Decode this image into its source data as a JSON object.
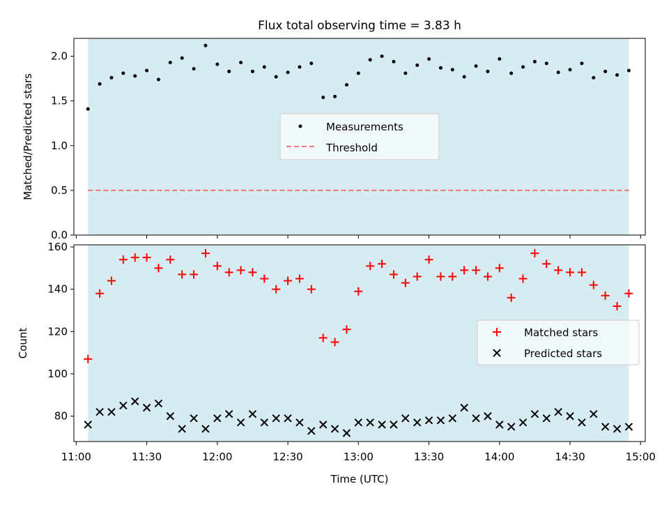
{
  "figure": {
    "title": "Flux total observing time = 3.83 h",
    "xlabel": "Time (UTC)",
    "x_ticks": [
      "11:00",
      "11:30",
      "12:00",
      "12:30",
      "13:00",
      "13:30",
      "14:00",
      "14:30",
      "15:00"
    ],
    "span_color": "#add8e6",
    "span_start": "11:05",
    "span_end": "14:55"
  },
  "chart_data": [
    {
      "type": "scatter",
      "ylabel": "Matched/Predicted stars",
      "ylim": [
        0,
        2.2
      ],
      "y_ticks": [
        "0.0",
        "0.5",
        "1.0",
        "1.5",
        "2.0"
      ],
      "xlim": [
        "10:59",
        "15:02"
      ],
      "threshold": 0.5,
      "legend_position": "center",
      "legend": [
        {
          "label": "Measurements",
          "marker": "dot",
          "color": "#000000"
        },
        {
          "label": "Threshold",
          "marker": "dashed-line",
          "color": "#ff0000"
        }
      ],
      "x": [
        "11:05",
        "11:10",
        "11:15",
        "11:20",
        "11:25",
        "11:30",
        "11:35",
        "11:40",
        "11:45",
        "11:50",
        "11:55",
        "12:00",
        "12:05",
        "12:10",
        "12:15",
        "12:20",
        "12:25",
        "12:30",
        "12:35",
        "12:40",
        "12:45",
        "12:50",
        "12:55",
        "13:00",
        "13:05",
        "13:10",
        "13:15",
        "13:20",
        "13:25",
        "13:30",
        "13:35",
        "13:40",
        "13:45",
        "13:50",
        "13:55",
        "14:00",
        "14:05",
        "14:10",
        "14:15",
        "14:20",
        "14:25",
        "14:30",
        "14:35",
        "14:40",
        "14:45",
        "14:50",
        "14:55"
      ],
      "series": [
        {
          "name": "Measurements",
          "color": "#000000",
          "values": [
            1.41,
            1.69,
            1.76,
            1.81,
            1.78,
            1.84,
            1.74,
            1.93,
            1.98,
            1.86,
            2.12,
            1.91,
            1.83,
            1.93,
            1.83,
            1.88,
            1.77,
            1.82,
            1.88,
            1.92,
            1.54,
            1.55,
            1.68,
            1.81,
            1.96,
            2.0,
            1.94,
            1.81,
            1.9,
            1.97,
            1.87,
            1.85,
            1.77,
            1.89,
            1.83,
            1.97,
            1.81,
            1.88,
            1.94,
            1.92,
            1.82,
            1.85,
            1.92,
            1.76,
            1.83,
            1.79,
            1.84
          ]
        }
      ]
    },
    {
      "type": "scatter",
      "ylabel": "Count",
      "ylim": [
        68,
        161
      ],
      "y_ticks": [
        "80",
        "100",
        "120",
        "140",
        "160"
      ],
      "xlim": [
        "10:59",
        "15:02"
      ],
      "legend_position": "right",
      "legend": [
        {
          "label": "Matched stars",
          "marker": "plus",
          "color": "#ff0000"
        },
        {
          "label": "Predicted stars",
          "marker": "cross",
          "color": "#000000"
        }
      ],
      "x": [
        "11:05",
        "11:10",
        "11:15",
        "11:20",
        "11:25",
        "11:30",
        "11:35",
        "11:40",
        "11:45",
        "11:50",
        "11:55",
        "12:00",
        "12:05",
        "12:10",
        "12:15",
        "12:20",
        "12:25",
        "12:30",
        "12:35",
        "12:40",
        "12:45",
        "12:50",
        "12:55",
        "13:00",
        "13:05",
        "13:10",
        "13:15",
        "13:20",
        "13:25",
        "13:30",
        "13:35",
        "13:40",
        "13:45",
        "13:50",
        "13:55",
        "14:00",
        "14:05",
        "14:10",
        "14:15",
        "14:20",
        "14:25",
        "14:30",
        "14:35",
        "14:40",
        "14:45",
        "14:50",
        "14:55"
      ],
      "series": [
        {
          "name": "Matched stars",
          "color": "#ff0000",
          "values": [
            107,
            138,
            144,
            154,
            155,
            155,
            150,
            154,
            147,
            147,
            157,
            151,
            148,
            149,
            148,
            145,
            140,
            144,
            145,
            140,
            117,
            115,
            121,
            139,
            151,
            152,
            147,
            143,
            146,
            154,
            146,
            146,
            149,
            149,
            146,
            150,
            136,
            145,
            157,
            152,
            149,
            148,
            148,
            142,
            137,
            132,
            138
          ]
        },
        {
          "name": "Predicted stars",
          "color": "#000000",
          "values": [
            76,
            82,
            82,
            85,
            87,
            84,
            86,
            80,
            74,
            79,
            74,
            79,
            81,
            77,
            81,
            77,
            79,
            79,
            77,
            73,
            76,
            74,
            72,
            77,
            77,
            76,
            76,
            79,
            77,
            78,
            78,
            79,
            84,
            79,
            80,
            76,
            75,
            77,
            81,
            79,
            82,
            80,
            77,
            81,
            75,
            74,
            75
          ]
        }
      ]
    }
  ]
}
